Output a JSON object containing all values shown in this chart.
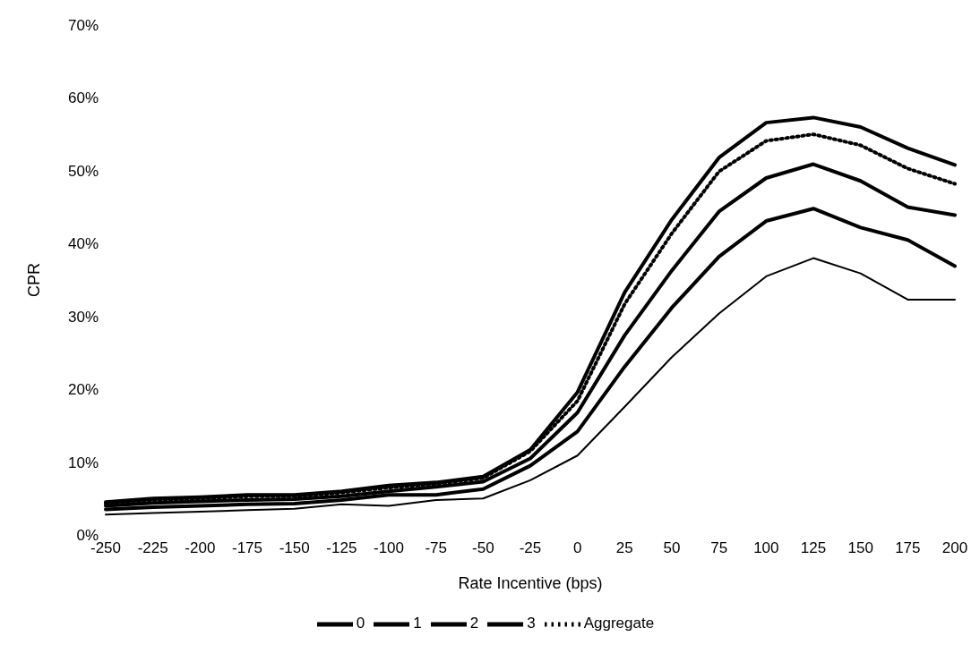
{
  "chart_data": {
    "type": "line",
    "xlabel": "Rate Incentive (bps)",
    "ylabel": "CPR",
    "categories": [
      "-250",
      "-225",
      "-200",
      "-175",
      "-150",
      "-125",
      "-100",
      "-75",
      "-50",
      "-25",
      "0",
      "25",
      "50",
      "75",
      "100",
      "125",
      "150",
      "175",
      "200"
    ],
    "series": [
      {
        "name": "0",
        "color": "#000000",
        "values": [
          4.5,
          5.0,
          5.2,
          5.5,
          5.5,
          6.0,
          6.8,
          7.2,
          8.0,
          11.7,
          19.6,
          33.3,
          43.3,
          51.8,
          56.6,
          57.3,
          56.0,
          53.1,
          50.8
        ]
      },
      {
        "name": "1",
        "color": "#000000",
        "values": [
          4.0,
          4.4,
          4.6,
          4.8,
          4.9,
          5.3,
          6.0,
          6.6,
          7.3,
          10.5,
          16.8,
          27.4,
          36.3,
          44.4,
          49.0,
          50.9,
          48.6,
          45.0,
          43.9
        ]
      },
      {
        "name": "2",
        "color": "#000000",
        "values": [
          3.5,
          3.8,
          4.0,
          4.2,
          4.3,
          4.8,
          5.5,
          5.5,
          6.3,
          9.5,
          14.2,
          23.1,
          31.2,
          38.2,
          43.1,
          44.8,
          42.2,
          40.5,
          36.9
        ]
      },
      {
        "name": "3",
        "color": "#000000",
        "values": [
          2.8,
          3.0,
          3.2,
          3.4,
          3.6,
          4.2,
          4.0,
          4.8,
          5.0,
          7.5,
          10.9,
          17.6,
          24.4,
          30.4,
          35.5,
          38.0,
          35.9,
          32.3,
          32.3
        ]
      },
      {
        "name": "Aggregate",
        "color": "#000000",
        "line_style": "dotted",
        "values": [
          4.3,
          4.8,
          5.0,
          5.3,
          5.3,
          5.8,
          6.5,
          7.0,
          7.8,
          11.5,
          18.4,
          31.7,
          41.4,
          49.9,
          54.1,
          55.0,
          53.5,
          50.3,
          48.2
        ]
      }
    ],
    "ylim": [
      0,
      70
    ],
    "yticks": [
      {
        "value": 0,
        "label": "0%"
      },
      {
        "value": 10,
        "label": "10%"
      },
      {
        "value": 20,
        "label": "20%"
      },
      {
        "value": 30,
        "label": "30%"
      },
      {
        "value": 40,
        "label": "40%"
      },
      {
        "value": 50,
        "label": "50%"
      },
      {
        "value": 60,
        "label": "60%"
      },
      {
        "value": 70,
        "label": "70%"
      }
    ],
    "legend": "bottom",
    "line_style": "solid",
    "marker": "none"
  }
}
